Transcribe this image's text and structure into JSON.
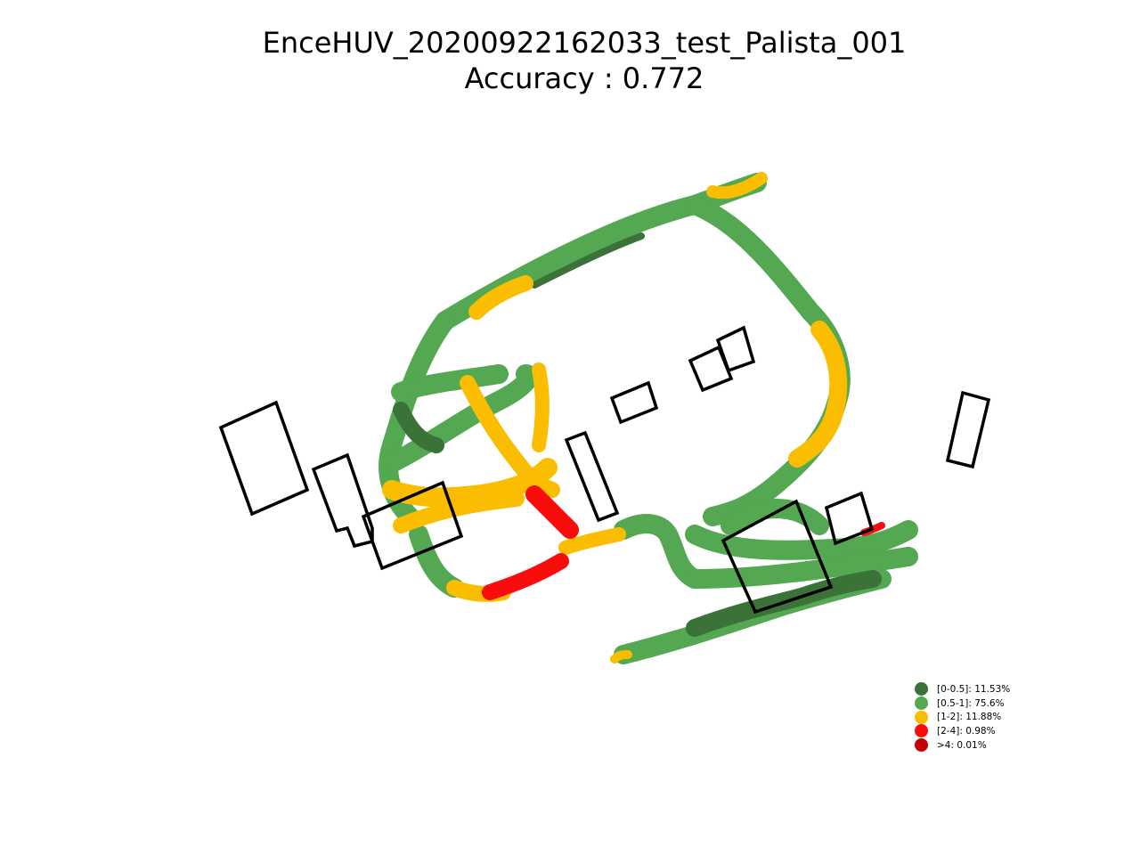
{
  "chart_data": {
    "type": "scatter",
    "title": "EnceHUV_20200922162033_test_Palista_001",
    "subtitle": "Accuracy : 0.772",
    "xlabel": "",
    "ylabel": "",
    "axes_visible": false,
    "grid": false,
    "legend_placement": "lower-right",
    "series": [
      {
        "name": "[0-0.5]: 11.53%",
        "color": "#3a7238"
      },
      {
        "name": "[0.5-1]: 75.6%",
        "color": "#53a851"
      },
      {
        "name": "[1-2]: 11.88%",
        "color": "#fbbd00"
      },
      {
        "name": "[2-4]: 0.98%",
        "color": "#f80d0c"
      },
      {
        "name": ">4: 0.01%",
        "color": "#c40000"
      }
    ]
  }
}
